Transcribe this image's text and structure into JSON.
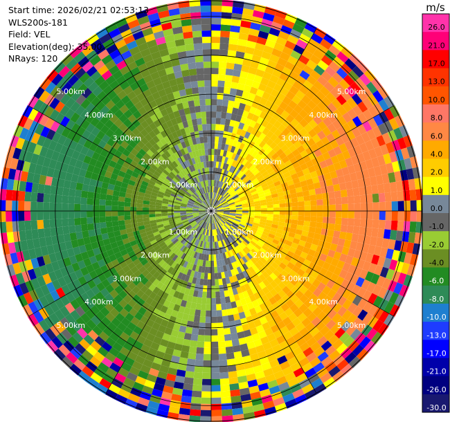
{
  "info": {
    "start_time": "Start time: 2026/02/21 02:53:13",
    "site": "WLS200s-181",
    "field": "Field: VEL",
    "elevation": "Elevation(deg): 35.00",
    "nrays": "NRays: 120"
  },
  "ppi": {
    "ring_labels": [
      "1.00km",
      "2.00km",
      "3.00km",
      "4.00km",
      "5.00km"
    ],
    "num_rays": 120,
    "max_range_km": 5.4
  },
  "colorbar": {
    "unit": "m/s",
    "ticks": [
      "26.0",
      "21.0",
      "17.0",
      "13.0",
      "10.0",
      "8.0",
      "6.0",
      "4.0",
      "2.0",
      "1.0",
      "0.0",
      "-1.0",
      "-2.0",
      "-4.0",
      "-6.0",
      "-8.0",
      "-10.0",
      "-13.0",
      "-17.0",
      "-21.0",
      "-26.0",
      "-30.0"
    ],
    "colors": [
      "#ff33aa",
      "#ff0077",
      "#ff0000",
      "#ff3300",
      "#ff5500",
      "#ff7766",
      "#ff8844",
      "#ffaa00",
      "#ffcc00",
      "#ffff00",
      "#778899",
      "#666666",
      "#99cc33",
      "#6b8e23",
      "#228b22",
      "#2e8b57",
      "#1e7fd0",
      "#1e3cff",
      "#0000ff",
      "#0000aa",
      "#000080",
      "#191970"
    ]
  }
}
